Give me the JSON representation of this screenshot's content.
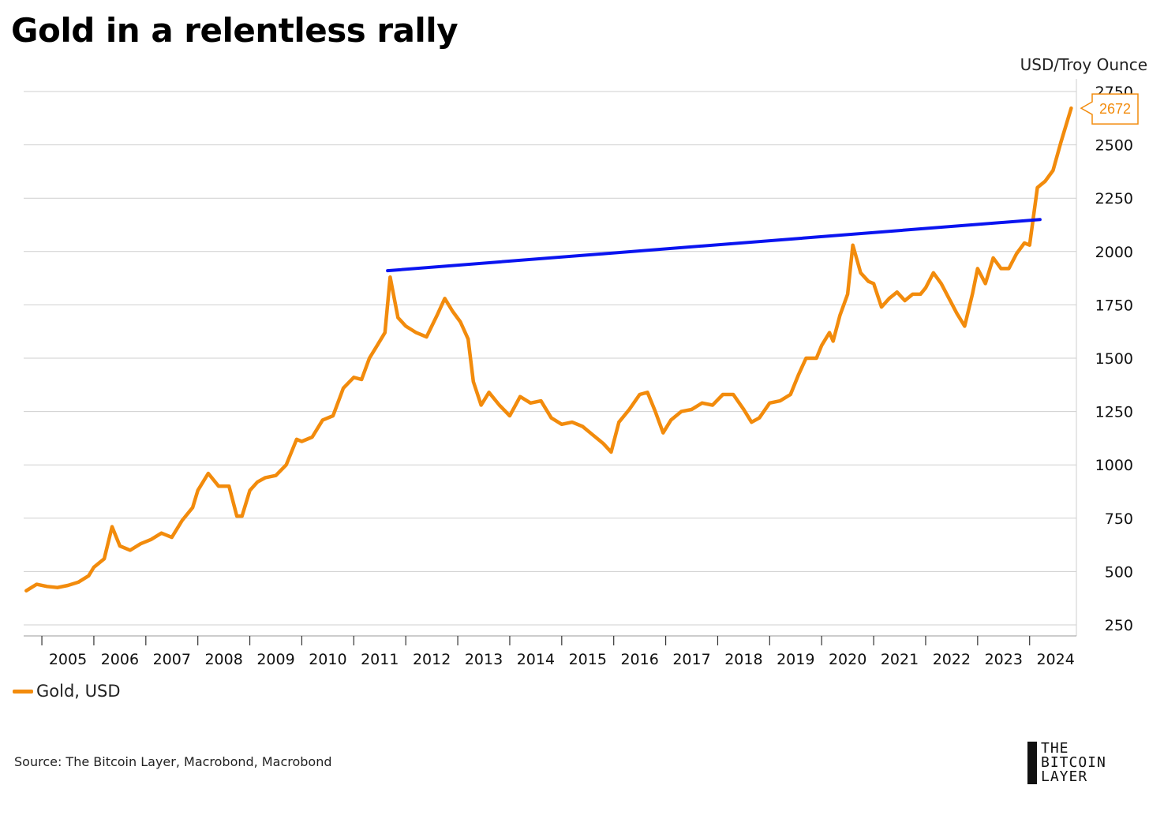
{
  "header": {
    "title": "Gold in a relentless rally",
    "unit_label": "USD/Troy Ounce"
  },
  "legend": {
    "items": [
      {
        "label": "Gold, USD",
        "color": "#f28b0c"
      }
    ]
  },
  "footer": {
    "source": "Source: The Bitcoin Layer, Macrobond, Macrobond"
  },
  "logo": {
    "lines": [
      "THE",
      "BITCOIN",
      "LAYER"
    ]
  },
  "chart_data": {
    "type": "line",
    "title": "Gold in a relentless rally",
    "ylabel": "USD/Troy Ounce",
    "ylim": [
      250,
      2750
    ],
    "yticks": [
      250,
      500,
      750,
      1000,
      1250,
      1500,
      1750,
      2000,
      2250,
      2500,
      2750
    ],
    "xlim": [
      2004.65,
      2024.9
    ],
    "xticks": [
      "2005",
      "2006",
      "2007",
      "2008",
      "2009",
      "2010",
      "2011",
      "2012",
      "2013",
      "2014",
      "2015",
      "2016",
      "2017",
      "2018",
      "2019",
      "2020",
      "2021",
      "2022",
      "2023",
      "2024"
    ],
    "grid": true,
    "legend_position": "bottom-left",
    "last_value_label": "2672",
    "series": [
      {
        "name": "Gold, USD",
        "color": "#f28b0c",
        "x": [
          2004.7,
          2004.9,
          2005.1,
          2005.3,
          2005.5,
          2005.7,
          2005.9,
          2006.0,
          2006.2,
          2006.35,
          2006.5,
          2006.7,
          2006.9,
          2007.1,
          2007.3,
          2007.5,
          2007.7,
          2007.9,
          2008.0,
          2008.2,
          2008.4,
          2008.6,
          2008.75,
          2008.85,
          2009.0,
          2009.15,
          2009.3,
          2009.5,
          2009.7,
          2009.9,
          2010.0,
          2010.2,
          2010.4,
          2010.6,
          2010.8,
          2011.0,
          2011.15,
          2011.3,
          2011.45,
          2011.6,
          2011.7,
          2011.85,
          2012.0,
          2012.2,
          2012.4,
          2012.6,
          2012.75,
          2012.9,
          2013.05,
          2013.2,
          2013.3,
          2013.45,
          2013.6,
          2013.8,
          2014.0,
          2014.2,
          2014.4,
          2014.6,
          2014.8,
          2015.0,
          2015.2,
          2015.4,
          2015.6,
          2015.8,
          2015.95,
          2016.1,
          2016.3,
          2016.5,
          2016.65,
          2016.8,
          2016.95,
          2017.1,
          2017.3,
          2017.5,
          2017.7,
          2017.9,
          2018.1,
          2018.3,
          2018.5,
          2018.65,
          2018.8,
          2019.0,
          2019.2,
          2019.4,
          2019.55,
          2019.7,
          2019.9,
          2020.0,
          2020.15,
          2020.22,
          2020.35,
          2020.5,
          2020.6,
          2020.75,
          2020.9,
          2021.0,
          2021.15,
          2021.3,
          2021.45,
          2021.6,
          2021.75,
          2021.9,
          2022.0,
          2022.15,
          2022.3,
          2022.45,
          2022.6,
          2022.75,
          2022.9,
          2023.0,
          2023.15,
          2023.3,
          2023.45,
          2023.6,
          2023.75,
          2023.9,
          2024.0,
          2024.15,
          2024.3,
          2024.45,
          2024.6,
          2024.8
        ],
        "y": [
          410,
          440,
          430,
          425,
          435,
          450,
          480,
          520,
          560,
          710,
          620,
          600,
          630,
          650,
          680,
          660,
          740,
          800,
          880,
          960,
          900,
          900,
          760,
          760,
          880,
          920,
          940,
          950,
          1000,
          1120,
          1110,
          1130,
          1210,
          1230,
          1360,
          1410,
          1400,
          1500,
          1560,
          1620,
          1880,
          1690,
          1650,
          1620,
          1600,
          1700,
          1780,
          1720,
          1670,
          1590,
          1390,
          1280,
          1340,
          1280,
          1230,
          1320,
          1290,
          1300,
          1220,
          1190,
          1200,
          1180,
          1140,
          1100,
          1060,
          1200,
          1260,
          1330,
          1340,
          1250,
          1150,
          1210,
          1250,
          1260,
          1290,
          1280,
          1330,
          1330,
          1260,
          1200,
          1220,
          1290,
          1300,
          1330,
          1420,
          1500,
          1500,
          1560,
          1620,
          1580,
          1700,
          1800,
          2030,
          1900,
          1860,
          1850,
          1740,
          1780,
          1810,
          1770,
          1800,
          1800,
          1830,
          1900,
          1850,
          1780,
          1710,
          1650,
          1800,
          1920,
          1850,
          1970,
          1920,
          1920,
          1990,
          2040,
          2030,
          2300,
          2330,
          2380,
          2510,
          2672
        ]
      },
      {
        "name": "",
        "color": "#0a14f0",
        "x": [
          2011.65,
          2024.2
        ],
        "y": [
          1910,
          2150
        ]
      }
    ]
  }
}
